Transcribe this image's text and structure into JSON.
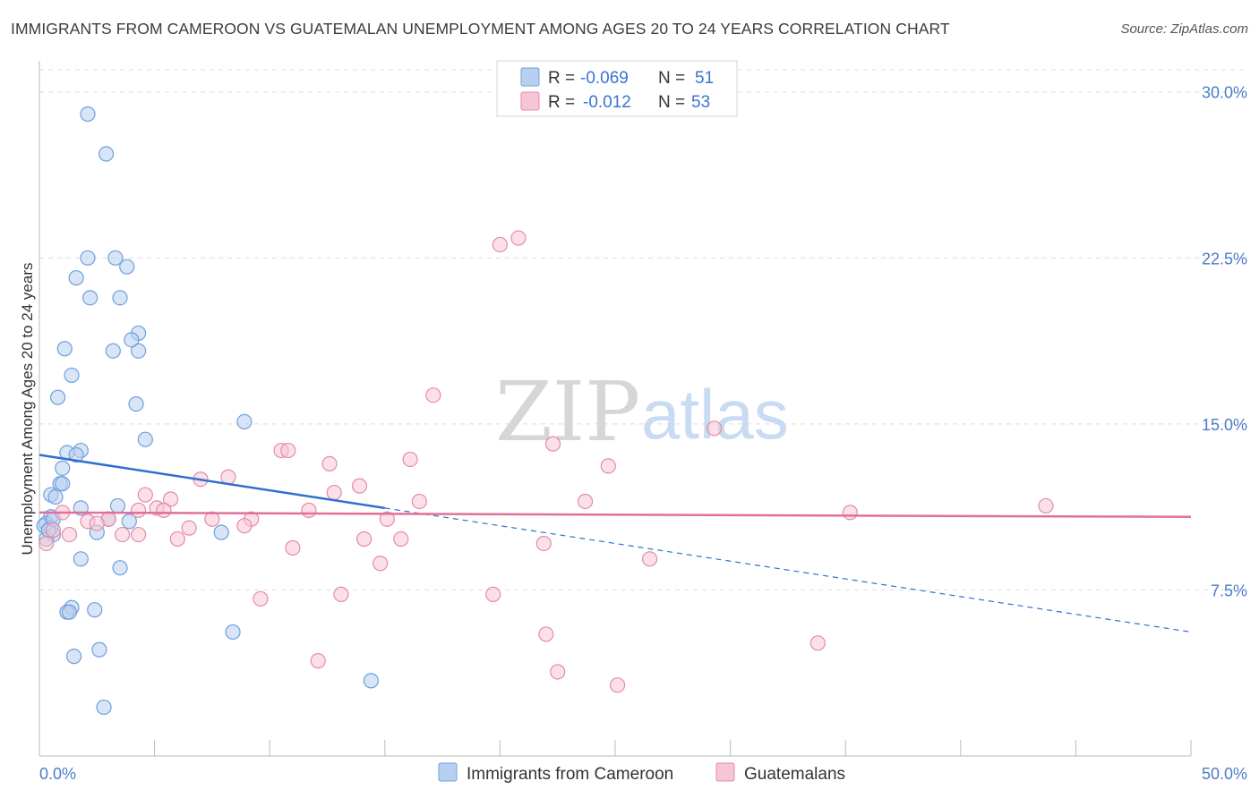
{
  "title": "IMMIGRANTS FROM CAMEROON VS GUATEMALAN UNEMPLOYMENT AMONG AGES 20 TO 24 YEARS CORRELATION CHART",
  "source": "Source: ZipAtlas.com",
  "watermark": {
    "zip": "ZIP",
    "atlas": "atlas"
  },
  "colors": {
    "blue_fill": "#b8d0f0",
    "blue_stroke": "#6f9fdc",
    "blue_line": "#2f6fd0",
    "pink_fill": "#f7c6d6",
    "pink_stroke": "#e58aab",
    "pink_line": "#e0709a",
    "grid": "#dddddd",
    "axis_text": "#4a7cc9"
  },
  "legend": {
    "rows": [
      {
        "r_label": "R = ",
        "r_value": "-0.069",
        "n_label": "N = ",
        "n_value": "51"
      },
      {
        "r_label": "R = ",
        "r_value": "-0.012",
        "n_label": "N = ",
        "n_value": "53"
      }
    ]
  },
  "chart_data": {
    "type": "scatter",
    "title": "IMMIGRANTS FROM CAMEROON VS GUATEMALAN UNEMPLOYMENT AMONG AGES 20 TO 24 YEARS CORRELATION CHART",
    "xlabel": "",
    "ylabel": "Unemployment Among Ages 20 to 24 years",
    "xlim": [
      0,
      50
    ],
    "ylim": [
      0,
      31
    ],
    "x_tick_labels": [
      "0.0%",
      "50.0%"
    ],
    "y_ticks": [
      7.5,
      15.0,
      22.5,
      30.0
    ],
    "y_tick_labels": [
      "7.5%",
      "15.0%",
      "22.5%",
      "30.0%"
    ],
    "series": [
      {
        "name": "Immigrants from Cameroon",
        "color": "blue",
        "trend": {
          "x0": 0,
          "y0": 13.6,
          "x1": 15,
          "y1": 11.2,
          "dash_x1": 50,
          "dash_y1": 5.6
        },
        "points": [
          [
            2.1,
            29.0
          ],
          [
            2.9,
            27.2
          ],
          [
            2.1,
            22.5
          ],
          [
            3.3,
            22.5
          ],
          [
            1.6,
            21.6
          ],
          [
            3.8,
            22.1
          ],
          [
            2.2,
            20.7
          ],
          [
            3.5,
            20.7
          ],
          [
            1.1,
            18.4
          ],
          [
            4.3,
            19.1
          ],
          [
            3.2,
            18.3
          ],
          [
            4.3,
            18.3
          ],
          [
            4.0,
            18.8
          ],
          [
            1.4,
            17.2
          ],
          [
            0.8,
            16.2
          ],
          [
            4.2,
            15.9
          ],
          [
            8.9,
            15.1
          ],
          [
            4.6,
            14.3
          ],
          [
            1.8,
            13.8
          ],
          [
            1.2,
            13.7
          ],
          [
            1.6,
            13.6
          ],
          [
            1.0,
            13.0
          ],
          [
            0.9,
            12.3
          ],
          [
            1.0,
            12.3
          ],
          [
            0.5,
            11.8
          ],
          [
            0.7,
            11.7
          ],
          [
            1.8,
            11.2
          ],
          [
            3.4,
            11.3
          ],
          [
            0.5,
            10.8
          ],
          [
            0.3,
            10.5
          ],
          [
            3.9,
            10.6
          ],
          [
            3.0,
            10.7
          ],
          [
            0.5,
            10.3
          ],
          [
            0.6,
            10.0
          ],
          [
            0.3,
            9.8
          ],
          [
            2.5,
            10.1
          ],
          [
            7.9,
            10.1
          ],
          [
            1.8,
            8.9
          ],
          [
            3.5,
            8.5
          ],
          [
            1.4,
            6.7
          ],
          [
            1.2,
            6.5
          ],
          [
            1.3,
            6.5
          ],
          [
            2.4,
            6.6
          ],
          [
            8.4,
            5.6
          ],
          [
            2.6,
            4.8
          ],
          [
            1.5,
            4.5
          ],
          [
            14.4,
            3.4
          ],
          [
            2.8,
            2.2
          ],
          [
            0.2,
            10.4
          ],
          [
            0.4,
            10.2
          ],
          [
            0.6,
            10.7
          ]
        ]
      },
      {
        "name": "Guatemalans",
        "color": "pink",
        "trend": {
          "x0": 0,
          "y0": 11.0,
          "x1": 50,
          "y1": 10.8
        },
        "points": [
          [
            20.0,
            23.1
          ],
          [
            20.8,
            23.4
          ],
          [
            17.1,
            16.3
          ],
          [
            29.3,
            14.8
          ],
          [
            22.3,
            14.1
          ],
          [
            10.5,
            13.8
          ],
          [
            10.8,
            13.8
          ],
          [
            16.1,
            13.4
          ],
          [
            12.6,
            13.2
          ],
          [
            24.7,
            13.1
          ],
          [
            8.2,
            12.6
          ],
          [
            7.0,
            12.5
          ],
          [
            13.9,
            12.2
          ],
          [
            12.8,
            11.9
          ],
          [
            4.6,
            11.8
          ],
          [
            5.7,
            11.6
          ],
          [
            16.5,
            11.5
          ],
          [
            23.7,
            11.5
          ],
          [
            5.1,
            11.2
          ],
          [
            4.3,
            11.1
          ],
          [
            11.7,
            11.1
          ],
          [
            35.2,
            11.0
          ],
          [
            43.7,
            11.3
          ],
          [
            1.0,
            11.0
          ],
          [
            2.1,
            10.6
          ],
          [
            3.0,
            10.7
          ],
          [
            7.5,
            10.7
          ],
          [
            9.2,
            10.7
          ],
          [
            15.1,
            10.7
          ],
          [
            6.5,
            10.3
          ],
          [
            8.9,
            10.4
          ],
          [
            1.3,
            10.0
          ],
          [
            4.3,
            10.0
          ],
          [
            6.0,
            9.8
          ],
          [
            14.1,
            9.8
          ],
          [
            15.7,
            9.8
          ],
          [
            21.9,
            9.6
          ],
          [
            11.0,
            9.4
          ],
          [
            26.5,
            8.9
          ],
          [
            14.8,
            8.7
          ],
          [
            13.1,
            7.3
          ],
          [
            19.7,
            7.3
          ],
          [
            9.6,
            7.1
          ],
          [
            22.0,
            5.5
          ],
          [
            33.8,
            5.1
          ],
          [
            12.1,
            4.3
          ],
          [
            22.5,
            3.8
          ],
          [
            25.1,
            3.2
          ],
          [
            0.3,
            9.6
          ],
          [
            0.6,
            10.2
          ],
          [
            2.5,
            10.5
          ],
          [
            3.6,
            10.0
          ],
          [
            5.4,
            11.1
          ]
        ]
      }
    ]
  }
}
